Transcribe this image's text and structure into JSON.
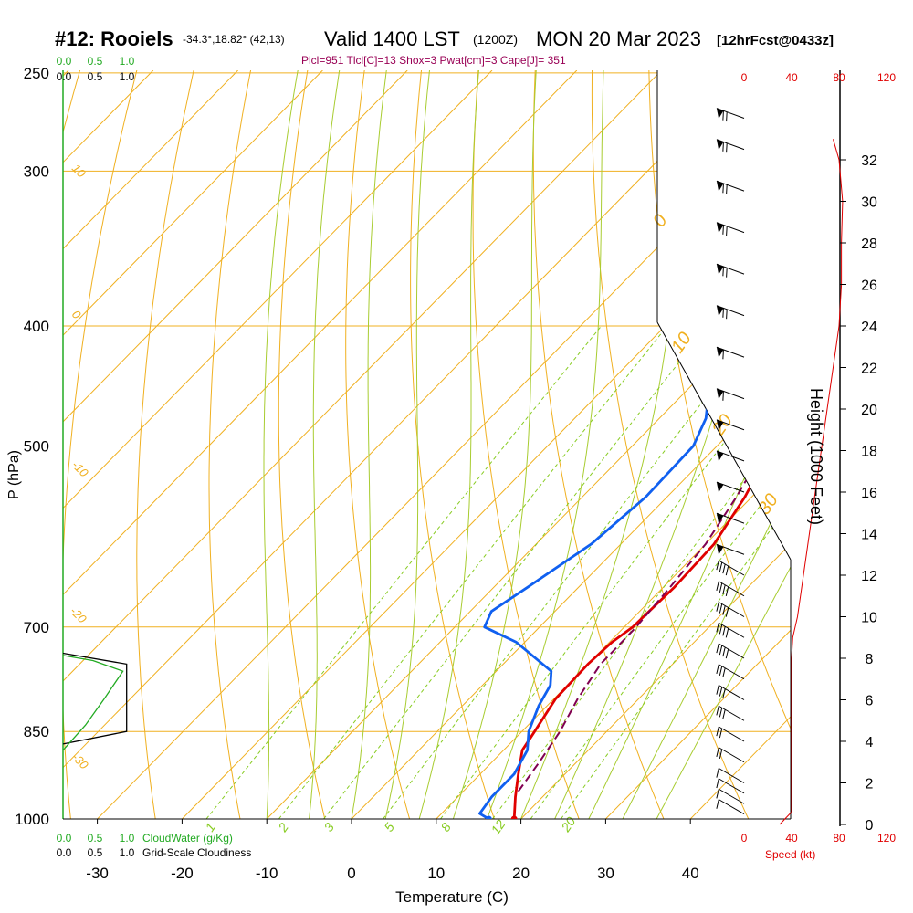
{
  "header": {
    "station": "#12: Rooiels",
    "coords": "-34.3°,18.82° (42,13)",
    "valid": "Valid 1400 LST",
    "utc": "(1200Z)",
    "date": "MON 20 Mar 2023",
    "forecast": "[12hrFcst@0433z]",
    "params": "Plcl=951 Tlcl[C]=13 Shox=3 Pwat[cm]=3 Cape[J]= 351"
  },
  "colors": {
    "isotherm": "#f0b020",
    "dry_adiabat": "#f0b020",
    "moist_adiabat": "#a8cc30",
    "mixing_ratio": "#88cc22",
    "temperature": "#e00000",
    "dewpoint": "#1060f0",
    "parcel": "#800050",
    "cloudwater": "#22aa22",
    "speed": "#e00000",
    "params": "#990055"
  },
  "chart_data": {
    "type": "line",
    "xlabel": "Temperature (C)",
    "ylabel": "P (hPa)",
    "y2label": "Height (1000 Feet)",
    "x_ticks": [
      "-30",
      "-20",
      "-10",
      "0",
      "10",
      "20",
      "30",
      "40"
    ],
    "p_ticks": [
      "250",
      "300",
      "400",
      "500",
      "700",
      "850",
      "1000"
    ],
    "height_ticks": [
      "0",
      "2",
      "4",
      "6",
      "8",
      "10",
      "12",
      "14",
      "16",
      "18",
      "20",
      "22",
      "24",
      "26",
      "28",
      "30",
      "32"
    ],
    "temp_range": [
      -35,
      35
    ],
    "pressure_range": [
      1000,
      250
    ],
    "isotherm_labels": [
      "10",
      "0",
      "-10",
      "-20",
      "-30"
    ],
    "moist_adiabat_labels": [
      "0",
      "10",
      "20",
      "30"
    ],
    "mixing_ratio_labels": [
      "1",
      "2",
      "3",
      "5",
      "8",
      "12",
      "20"
    ],
    "series": [
      {
        "key": "temperature",
        "points": [
          [
            19.2,
            1000
          ],
          [
            16.8,
            960
          ],
          [
            14.5,
            920
          ],
          [
            12.2,
            880
          ],
          [
            11.5,
            850
          ],
          [
            10.2,
            800
          ],
          [
            10.0,
            750
          ],
          [
            10.3,
            720
          ],
          [
            11.0,
            700
          ],
          [
            11.3,
            650
          ],
          [
            11.0,
            600
          ],
          [
            9.2,
            550
          ],
          [
            6.5,
            500
          ],
          [
            2.5,
            450
          ],
          [
            -1.5,
            400
          ],
          [
            -4.2,
            360
          ],
          [
            -4.5,
            330
          ],
          [
            -3.5,
            300
          ],
          [
            -1.5,
            270
          ],
          [
            -1.5,
            260
          ]
        ]
      },
      {
        "key": "dewpoint",
        "points": [
          [
            16.2,
            1000
          ],
          [
            14.5,
            990
          ],
          [
            14.0,
            960
          ],
          [
            14.0,
            920
          ],
          [
            12.8,
            880
          ],
          [
            10.8,
            850
          ],
          [
            9.0,
            810
          ],
          [
            8.0,
            780
          ],
          [
            6.5,
            760
          ],
          [
            -1.0,
            720
          ],
          [
            -6.5,
            700
          ],
          [
            -7.5,
            680
          ],
          [
            -6.0,
            650
          ],
          [
            -3.5,
            600
          ],
          [
            -2.5,
            550
          ],
          [
            -2.8,
            500
          ],
          [
            -4.5,
            475
          ],
          [
            -7.5,
            450
          ],
          [
            -11.5,
            400
          ],
          [
            -14.5,
            370
          ],
          [
            -16.5,
            350
          ],
          [
            -19.0,
            320
          ],
          [
            -25.0,
            290
          ],
          [
            -32.0,
            265
          ]
        ]
      },
      {
        "key": "parcel",
        "points": [
          [
            16.5,
            950
          ],
          [
            15.6,
            900
          ],
          [
            14.5,
            850
          ],
          [
            12.8,
            800
          ],
          [
            11.5,
            750
          ],
          [
            11.4,
            700
          ],
          [
            10.8,
            650
          ],
          [
            10.0,
            600
          ],
          [
            8.2,
            550
          ],
          [
            5.8,
            500
          ],
          [
            3.0,
            450
          ],
          [
            -1.0,
            400
          ],
          [
            -5.5,
            360
          ]
        ]
      }
    ],
    "speed_profile": {
      "label": "Speed (kt)",
      "ticks": [
        "0",
        "40",
        "80",
        "120"
      ],
      "points": [
        [
          30,
          0
        ],
        [
          40,
          0.6
        ],
        [
          40,
          2
        ],
        [
          40,
          4
        ],
        [
          40,
          6
        ],
        [
          40,
          8
        ],
        [
          41,
          9
        ],
        [
          45,
          10
        ],
        [
          50,
          12
        ],
        [
          55,
          14
        ],
        [
          60,
          16
        ],
        [
          65,
          18
        ],
        [
          70,
          20
        ],
        [
          75,
          22
        ],
        [
          80,
          24
        ],
        [
          82,
          26
        ],
        [
          82,
          28
        ],
        [
          83,
          30
        ],
        [
          80,
          32
        ],
        [
          75,
          33
        ]
      ]
    },
    "cloud_profile": {
      "cloudwater_label": "CloudWater (g/Kg)",
      "cloudiness_label": "Grid-Scale Cloudiness",
      "ticks": [
        "0.0",
        "0.5",
        "1.0"
      ],
      "cloudiness_points": [
        [
          0,
          870
        ],
        [
          0.85,
          850
        ],
        [
          0.85,
          750
        ],
        [
          0,
          735
        ]
      ],
      "cloudwater_points": [
        [
          0,
          880
        ],
        [
          0.3,
          840
        ],
        [
          0.55,
          800
        ],
        [
          0.8,
          760
        ],
        [
          0.4,
          745
        ],
        [
          0,
          738
        ]
      ]
    },
    "wind_barbs": {
      "note_units": "kt",
      "barbs": [
        {
          "h": 0.5,
          "spd": 10,
          "dir": 300
        },
        {
          "h": 1,
          "spd": 10,
          "dir": 300
        },
        {
          "h": 1.5,
          "spd": 15,
          "dir": 300
        },
        {
          "h": 2,
          "spd": 15,
          "dir": 300
        },
        {
          "h": 3,
          "spd": 20,
          "dir": 300
        },
        {
          "h": 4,
          "spd": 25,
          "dir": 300
        },
        {
          "h": 5,
          "spd": 30,
          "dir": 300
        },
        {
          "h": 6,
          "spd": 35,
          "dir": 300
        },
        {
          "h": 7,
          "spd": 35,
          "dir": 300
        },
        {
          "h": 8,
          "spd": 40,
          "dir": 300
        },
        {
          "h": 9,
          "spd": 40,
          "dir": 300
        },
        {
          "h": 10,
          "spd": 40,
          "dir": 300
        },
        {
          "h": 11,
          "spd": 45,
          "dir": 300
        },
        {
          "h": 12,
          "spd": 45,
          "dir": 300
        },
        {
          "h": 13,
          "spd": 55,
          "dir": 290
        },
        {
          "h": 14.5,
          "spd": 55,
          "dir": 290
        },
        {
          "h": 16,
          "spd": 55,
          "dir": 290
        },
        {
          "h": 17.5,
          "spd": 55,
          "dir": 290
        },
        {
          "h": 19,
          "spd": 55,
          "dir": 290
        },
        {
          "h": 20.5,
          "spd": 60,
          "dir": 290
        },
        {
          "h": 22.5,
          "spd": 65,
          "dir": 290
        },
        {
          "h": 24.5,
          "spd": 70,
          "dir": 290
        },
        {
          "h": 26.5,
          "spd": 70,
          "dir": 290
        },
        {
          "h": 28.5,
          "spd": 70,
          "dir": 290
        },
        {
          "h": 30.5,
          "spd": 75,
          "dir": 290
        },
        {
          "h": 32.5,
          "spd": 75,
          "dir": 290
        },
        {
          "h": 34,
          "spd": 75,
          "dir": 290
        }
      ]
    }
  }
}
